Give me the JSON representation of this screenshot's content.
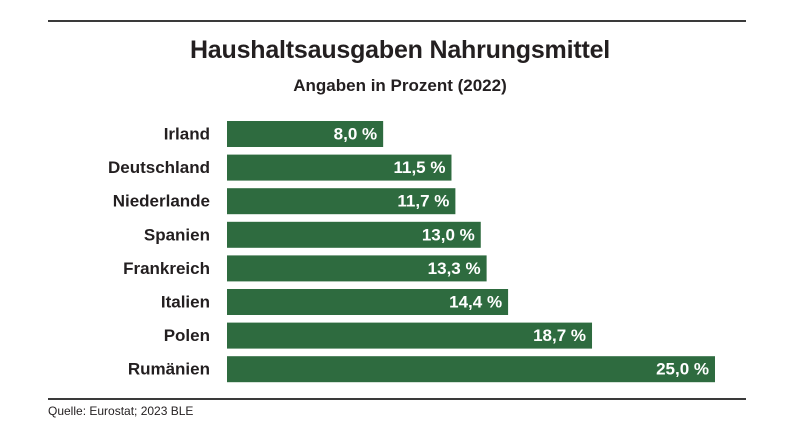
{
  "chart_data": {
    "type": "bar",
    "orientation": "horizontal",
    "title": "Haushaltsausgaben Nahrungsmittel",
    "subtitle": "Angaben in Prozent (2022)",
    "categories": [
      "Irland",
      "Deutschland",
      "Niederlande",
      "Spanien",
      "Frankreich",
      "Italien",
      "Polen",
      "Rumänien"
    ],
    "values": [
      8.0,
      11.5,
      11.7,
      13.0,
      13.3,
      14.4,
      18.7,
      25.0
    ],
    "value_labels": [
      "8,0 %",
      "11,5 %",
      "11,7 %",
      "13,0 %",
      "13,3 %",
      "14,4 %",
      "18,7 %",
      "25,0 %"
    ],
    "xlim": [
      0,
      25
    ],
    "grid": false,
    "legend": "none",
    "bar_color": "#2e6b3f",
    "label_color": "#ffffff"
  },
  "source": "Quelle: Eurostat; 2023 BLE"
}
